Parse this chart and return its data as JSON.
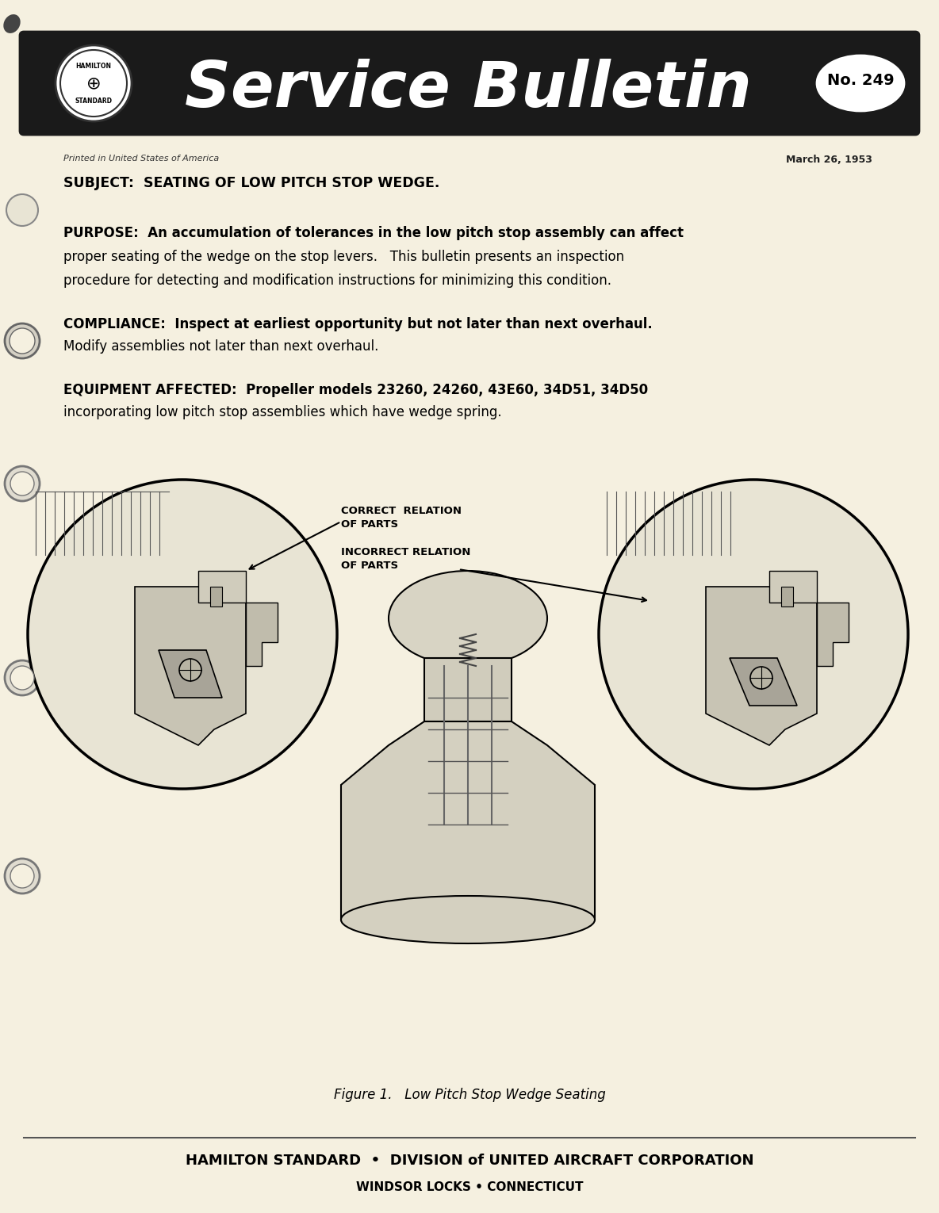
{
  "bg_color": "#f5f0e0",
  "header_bg": "#2a2a2a",
  "title_script": "Service Bulletin",
  "bulletin_no": "No. 249",
  "printed_in": "Printed in United States of America",
  "date": "March 26, 1953",
  "subject_label": "SUBJECT:",
  "subject_text": "  SEATING OF LOW PITCH STOP WEDGE.",
  "purpose_label": "PURPOSE:",
  "purpose_text": "  An accumulation of tolerances in the low pitch stop assembly can affect\nproper seating of the wedge on the stop levers.   This bulletin presents an inspection\nprocedure for detecting and modification instructions for minimizing this condition.",
  "compliance_label": "COMPLIANCE:",
  "compliance_text": "  Inspect at earliest opportunity but not later than next overhaul.\nModify assemblies not later than next overhaul.",
  "equipment_label": "EQUIPMENT AFFECTED:",
  "equipment_text": "  Propeller models 23260, 24260, 43E60, 34D51, 34D50\nincorporating low pitch stop assemblies which have wedge spring.",
  "figure_caption": "Figure 1.   Low Pitch Stop Wedge Seating",
  "correct_label": "CORRECT  RELATION\nOF PARTS",
  "incorrect_label": "INCORRECT RELATION\nOF PARTS",
  "footer_line1": "HAMILTON STANDARD  •  DIVISION of UNITED AIRCRAFT CORPORATION",
  "footer_line2": "WINDSOR LOCKS • CONNECTICUT"
}
